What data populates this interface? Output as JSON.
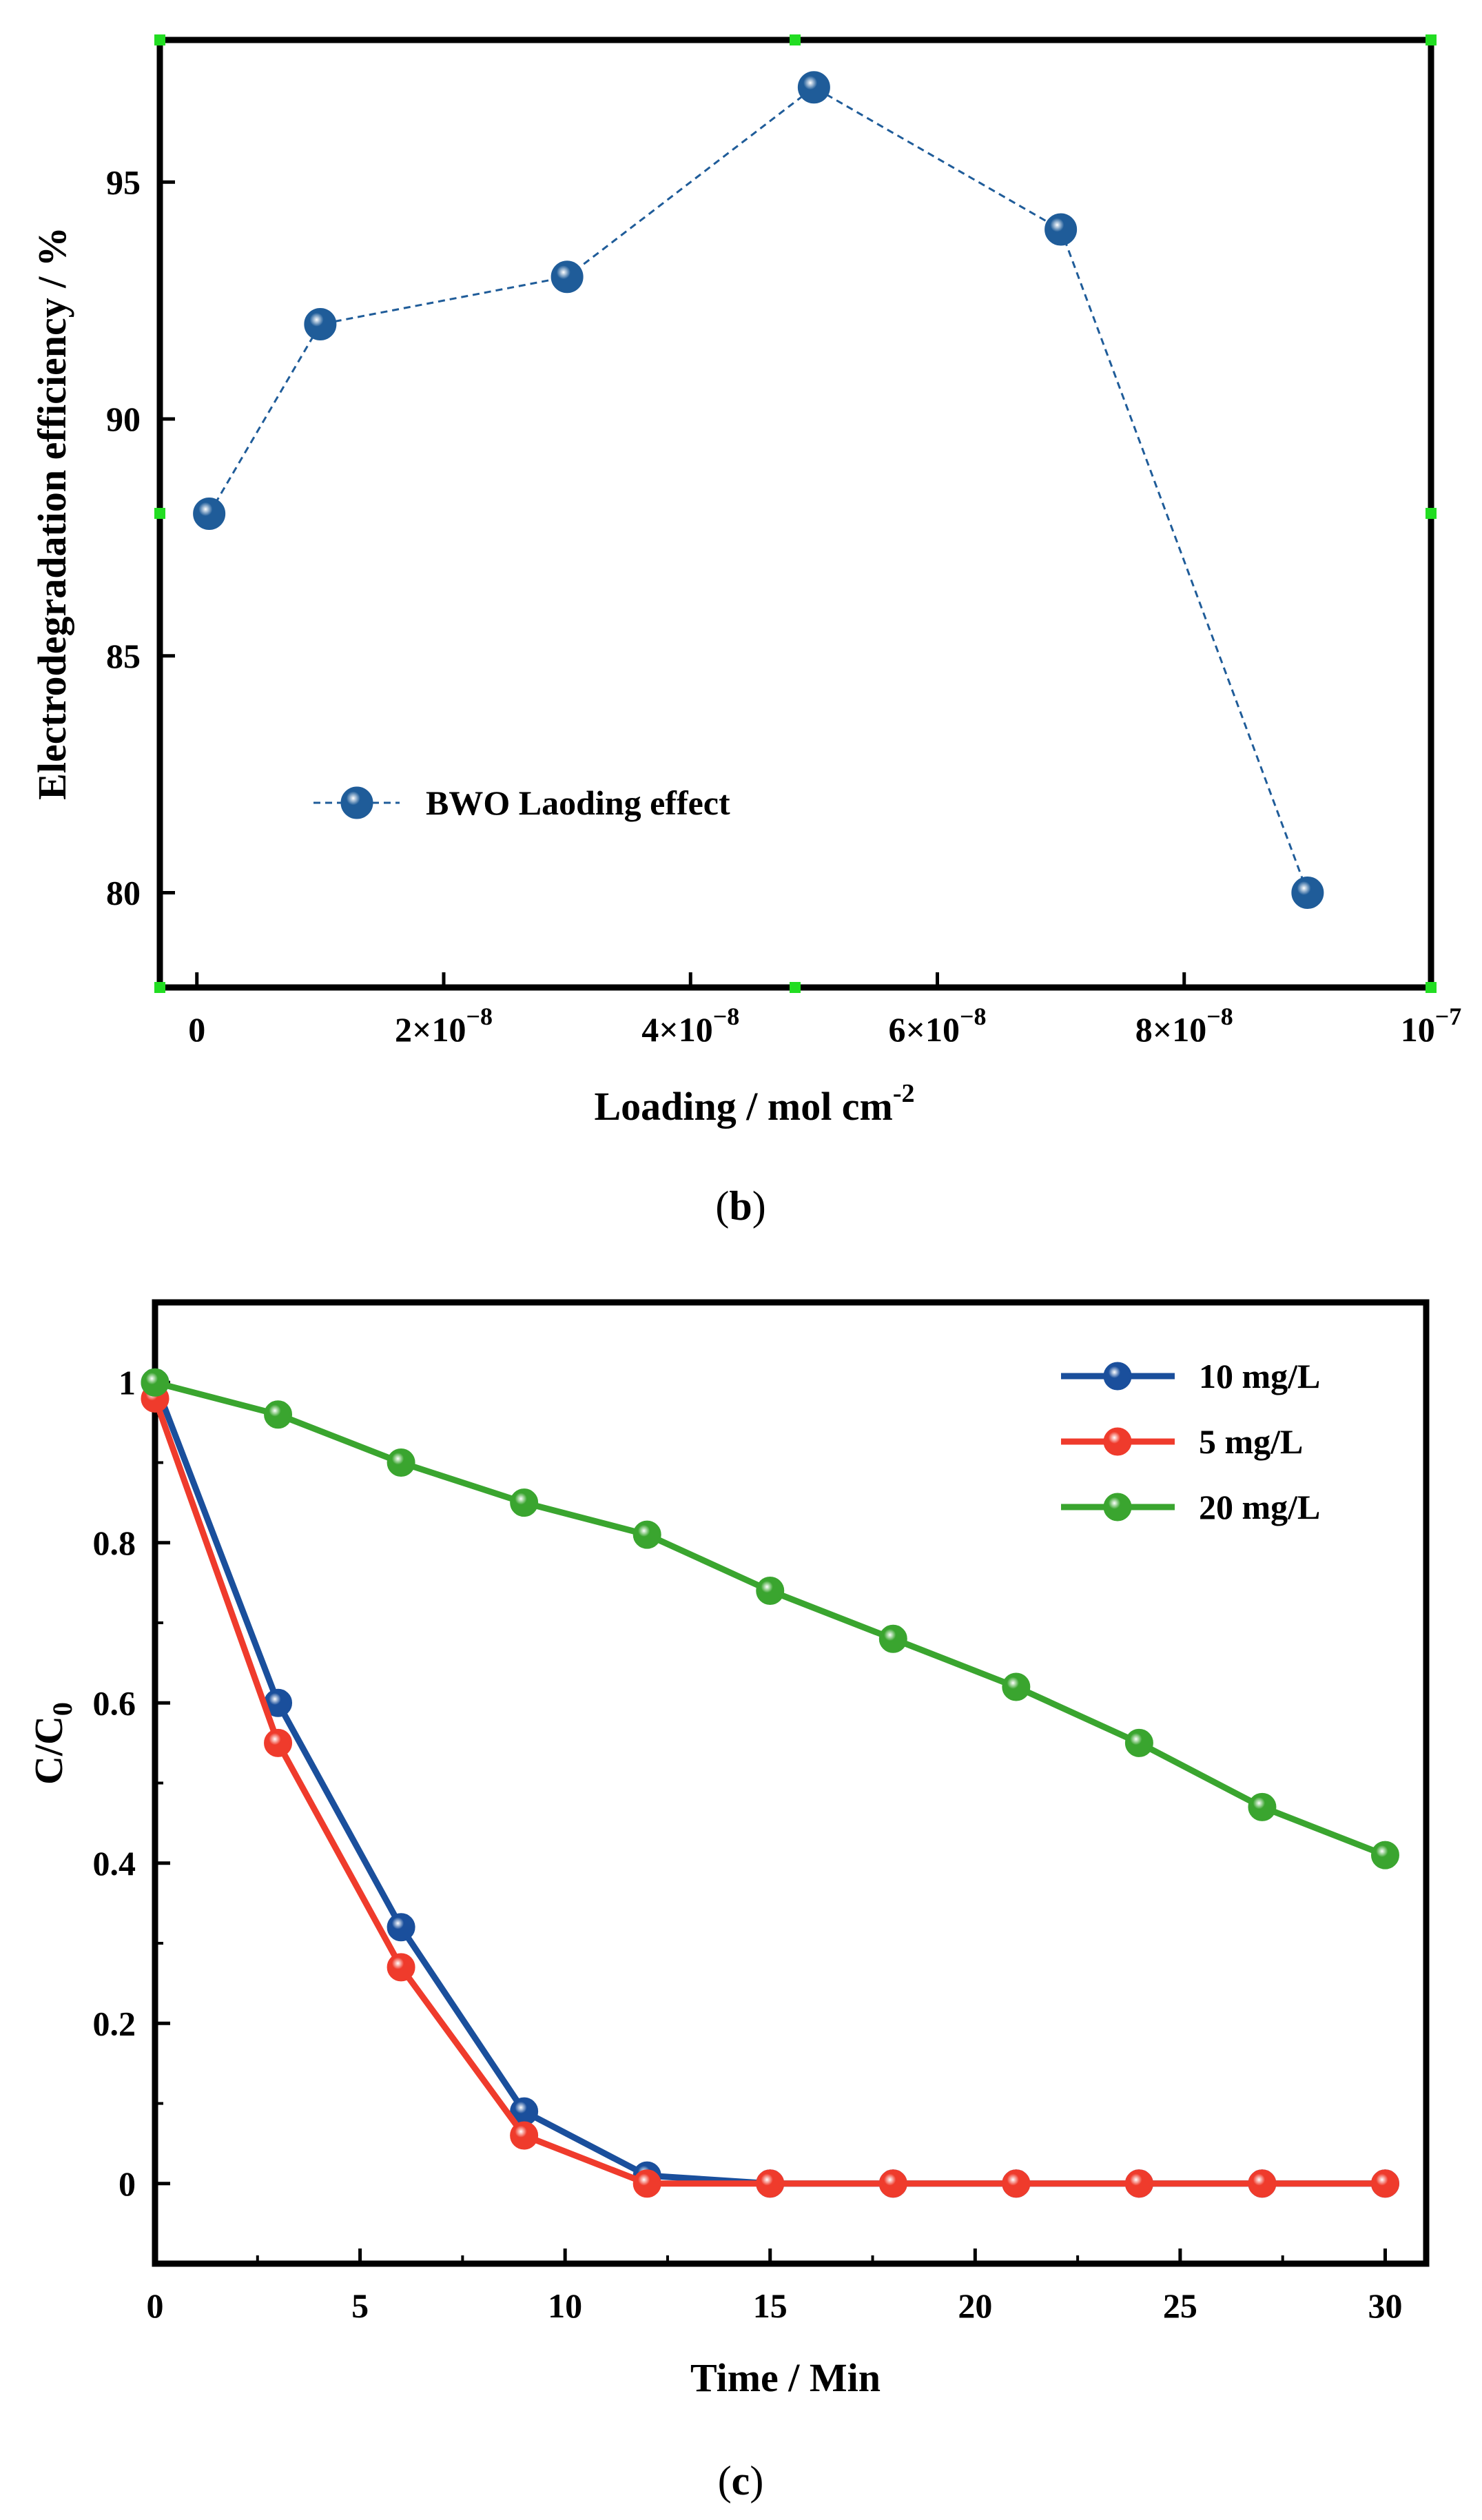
{
  "chart_data": [
    {
      "panel": "b",
      "type": "line",
      "title": "",
      "xlabel": "Loading / mol cm",
      "xlabel_sup": "-2",
      "ylabel": "Electrodegradation efficiency / %",
      "xlim": [
        -3e-09,
        1e-07
      ],
      "ylim": [
        78,
        98
      ],
      "x_ticks": [
        {
          "value": 0,
          "label": "0"
        },
        {
          "value": 2e-08,
          "label": "2×10",
          "sup": "−8"
        },
        {
          "value": 4e-08,
          "label": "4×10",
          "sup": "−8"
        },
        {
          "value": 6e-08,
          "label": "6×10",
          "sup": "−8"
        },
        {
          "value": 8e-08,
          "label": "8×10",
          "sup": "−8"
        },
        {
          "value": 1e-07,
          "label": "10",
          "sup": "−7"
        }
      ],
      "y_ticks": [
        {
          "value": 80,
          "label": "80"
        },
        {
          "value": 85,
          "label": "85"
        },
        {
          "value": 90,
          "label": "90"
        },
        {
          "value": 95,
          "label": "95"
        }
      ],
      "series": [
        {
          "name": "BWO Laoding effect",
          "color": "#1f5c99",
          "line_style": "dashed",
          "x": [
            1e-09,
            1e-08,
            3e-08,
            5e-08,
            7e-08,
            9e-08
          ],
          "y": [
            88,
            92,
            93,
            97,
            94,
            80
          ]
        }
      ],
      "legend_position": "lower-left",
      "caption": "b"
    },
    {
      "panel": "c",
      "type": "line",
      "title": "",
      "xlabel": "Time / Min",
      "ylabel": "C/C",
      "ylabel_sub": "0",
      "xlim": [
        0,
        31
      ],
      "ylim": [
        -0.1,
        1.1
      ],
      "x_ticks": [
        {
          "value": 0,
          "label": "0"
        },
        {
          "value": 5,
          "label": "5"
        },
        {
          "value": 10,
          "label": "10"
        },
        {
          "value": 15,
          "label": "15"
        },
        {
          "value": 20,
          "label": "20"
        },
        {
          "value": 25,
          "label": "25"
        },
        {
          "value": 30,
          "label": "30"
        }
      ],
      "y_ticks": [
        {
          "value": 0,
          "label": "0"
        },
        {
          "value": 0.2,
          "label": "0.2"
        },
        {
          "value": 0.4,
          "label": "0.4"
        },
        {
          "value": 0.6,
          "label": "0.6"
        },
        {
          "value": 0.8,
          "label": "0.8"
        },
        {
          "value": 1,
          "label": "1"
        }
      ],
      "series": [
        {
          "name": "10 mg/L",
          "color": "#1a4f9c",
          "x": [
            0,
            3,
            6,
            9,
            12,
            15,
            18,
            21,
            24,
            27,
            30
          ],
          "y": [
            1.0,
            0.6,
            0.32,
            0.09,
            0.01,
            0.0,
            0.0,
            0.0,
            0.0,
            0.0,
            0.0
          ]
        },
        {
          "name": "5 mg/L",
          "color": "#ef3b2c",
          "x": [
            0,
            3,
            6,
            9,
            12,
            15,
            18,
            21,
            24,
            27,
            30
          ],
          "y": [
            0.98,
            0.55,
            0.27,
            0.06,
            0.0,
            0.0,
            0.0,
            0.0,
            0.0,
            0.0,
            0.0
          ]
        },
        {
          "name": "20 mg/L",
          "color": "#3aa52f",
          "x": [
            0,
            3,
            6,
            9,
            12,
            15,
            18,
            21,
            24,
            27,
            30
          ],
          "y": [
            1.0,
            0.96,
            0.9,
            0.85,
            0.81,
            0.74,
            0.68,
            0.62,
            0.55,
            0.47,
            0.41
          ]
        }
      ],
      "legend_position": "top-right",
      "caption": "c"
    }
  ]
}
